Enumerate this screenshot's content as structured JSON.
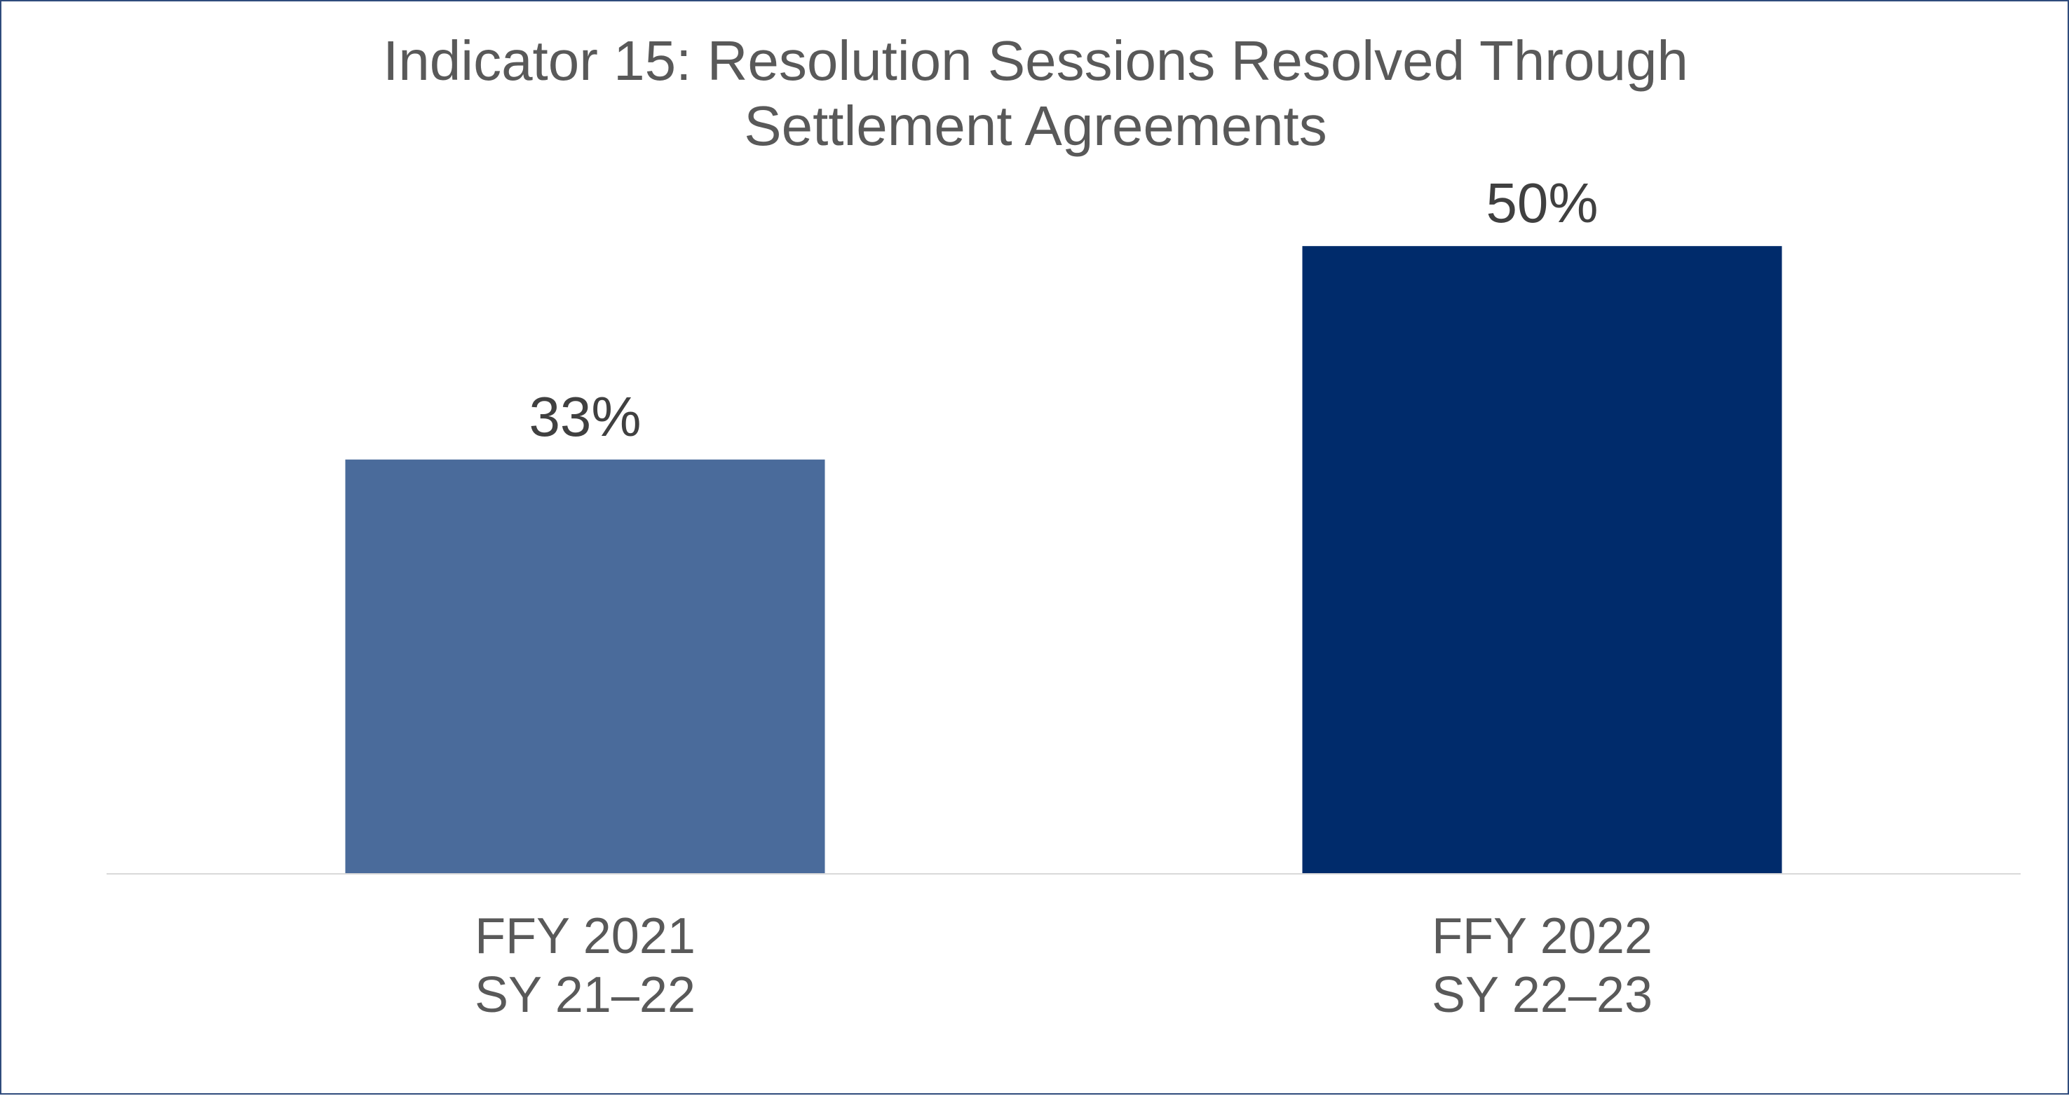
{
  "chart_data": {
    "type": "bar",
    "title_lines": [
      "Indicator 15: Resolution Sessions Resolved Through",
      "Settlement Agreements"
    ],
    "categories": [
      [
        "FFY 2021",
        "SY 21–22"
      ],
      [
        "FFY 2022",
        "SY 22–23"
      ]
    ],
    "values": [
      33,
      50
    ],
    "data_labels": [
      "33%",
      "50%"
    ],
    "unit": "%",
    "ylim": [
      0,
      60
    ],
    "grid": false,
    "legend": "none",
    "bar_colors": [
      "#4a6b9b",
      "#002b6b"
    ],
    "axis_color": "#d9d9d9"
  }
}
